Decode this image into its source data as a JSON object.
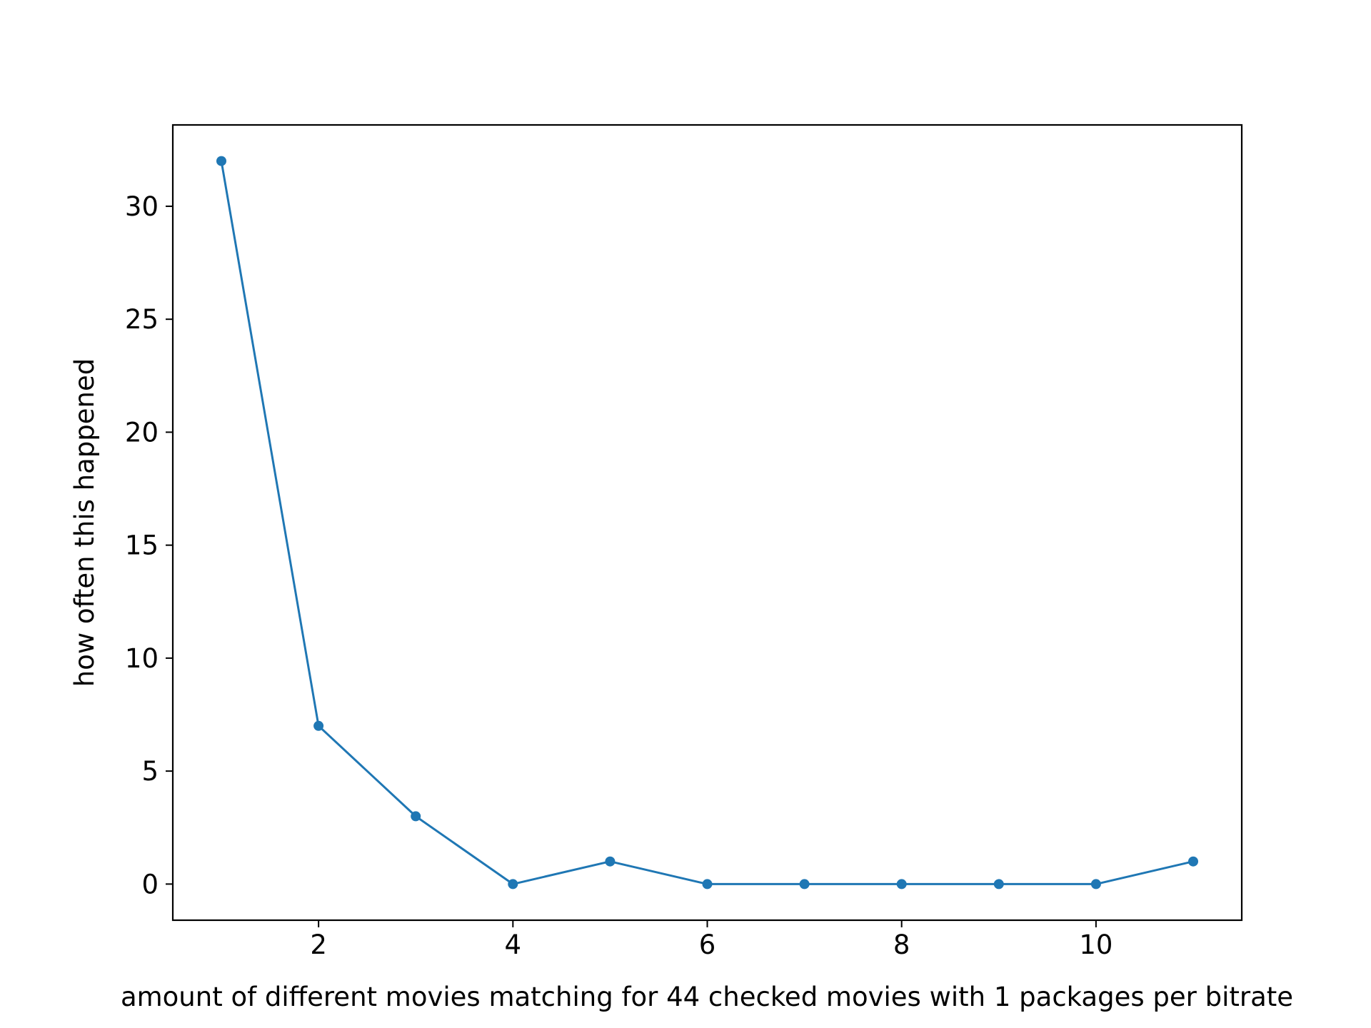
{
  "chart_data": {
    "type": "line",
    "title": "",
    "xlabel": "amount of different movies matching for 44 checked movies with 1 packages per bitrate",
    "ylabel": "how often this happened",
    "x": [
      1,
      2,
      3,
      4,
      5,
      6,
      7,
      8,
      9,
      10,
      11
    ],
    "series": [
      {
        "values": [
          32,
          7,
          3,
          0,
          1,
          0,
          0,
          0,
          0,
          0,
          1
        ],
        "color": "#1f77b4",
        "marker": "circle"
      }
    ],
    "xlim": [
      0.5,
      11.5
    ],
    "ylim": [
      -1.6,
      33.6
    ],
    "xticks": [
      2,
      4,
      6,
      8,
      10
    ],
    "yticks": [
      0,
      5,
      10,
      15,
      20,
      25,
      30
    ],
    "grid": false,
    "legend": "none"
  }
}
